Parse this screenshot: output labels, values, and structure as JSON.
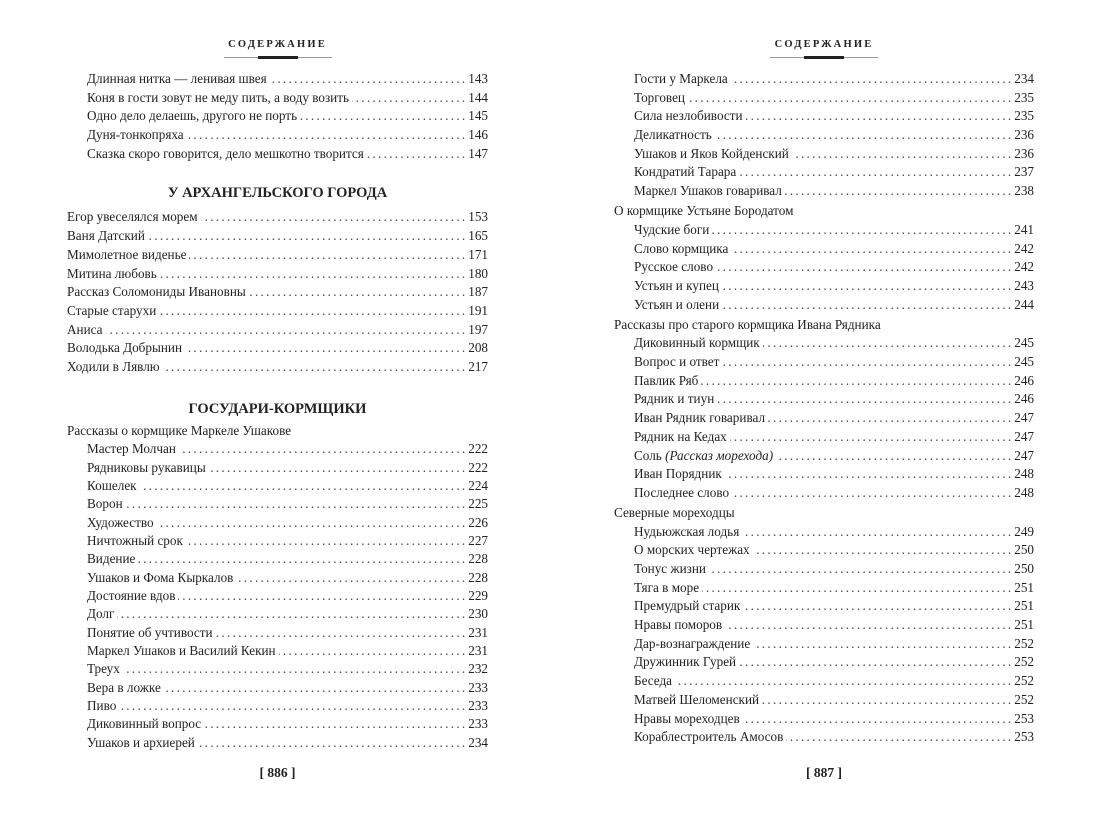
{
  "left_page": {
    "header": "СОДЕРЖАНИЕ",
    "page_number": "[ 886 ]",
    "blocks": [
      {
        "type": "entries",
        "indent": true,
        "items": [
          {
            "title": "Длинная нитка — ленивая швея",
            "page": "143"
          },
          {
            "title": "Коня в гости зовут не меду пить, а воду возить",
            "page": "144"
          },
          {
            "title": "Одно дело делаешь, другого не порть",
            "page": "145"
          },
          {
            "title": "Дуня-тонкопряха",
            "page": "146"
          },
          {
            "title": "Сказка скоро говорится, дело мешкотно творится",
            "page": "147"
          }
        ]
      },
      {
        "type": "section",
        "title": "У АРХАНГЕЛЬСКОГО ГОРОДА"
      },
      {
        "type": "entries",
        "indent": false,
        "items": [
          {
            "title": "Егор увеселялся морем",
            "page": "153"
          },
          {
            "title": "Ваня Датский",
            "page": "165"
          },
          {
            "title": "Мимолетное виденье",
            "page": "171"
          },
          {
            "title": "Митина любовь",
            "page": "180"
          },
          {
            "title": "Рассказ Соломониды Ивановны",
            "page": "187"
          },
          {
            "title": "Старые старухи",
            "page": "191"
          },
          {
            "title": "Аниса",
            "page": "197"
          },
          {
            "title": "Володька Добрынин",
            "page": "208"
          },
          {
            "title": "Ходили в Лявлю",
            "page": "217"
          }
        ]
      },
      {
        "type": "section",
        "title": "ГОСУДАРИ-КОРМЩИКИ"
      },
      {
        "type": "subsection",
        "title": "Рассказы о кормщике Маркеле Ушакове"
      },
      {
        "type": "entries",
        "indent": true,
        "tight": true,
        "items": [
          {
            "title": "Мастер Молчан",
            "page": "222"
          },
          {
            "title": "Рядниковы рукавицы",
            "page": "222"
          },
          {
            "title": "Кошелек",
            "page": "224"
          },
          {
            "title": "Ворон",
            "page": "225"
          },
          {
            "title": "Художество",
            "page": "226"
          },
          {
            "title": "Ничтожный срок",
            "page": "227"
          },
          {
            "title": "Видение",
            "page": "228"
          },
          {
            "title": "Ушаков и Фома Кыркалов",
            "page": "228"
          },
          {
            "title": "Достояние вдов",
            "page": "229"
          },
          {
            "title": "Долг",
            "page": "230"
          },
          {
            "title": "Понятие об учтивости",
            "page": "231"
          },
          {
            "title": "Маркел Ушаков и Василий Кекин",
            "page": "231"
          },
          {
            "title": "Треух",
            "page": "232"
          },
          {
            "title": "Вера в ложке",
            "page": "233"
          },
          {
            "title": "Пиво",
            "page": "233"
          },
          {
            "title": "Диковинный вопрос",
            "page": "233"
          },
          {
            "title": "Ушаков и архиерей",
            "page": "234"
          }
        ]
      }
    ]
  },
  "right_page": {
    "header": "СОДЕРЖАНИЕ",
    "page_number": "[ 887 ]",
    "blocks": [
      {
        "type": "entries",
        "indent": true,
        "items": [
          {
            "title": "Гости у Маркела",
            "page": "234"
          },
          {
            "title": "Торговец",
            "page": "235"
          },
          {
            "title": "Сила незлобивости",
            "page": "235"
          },
          {
            "title": "Деликатность",
            "page": "236"
          },
          {
            "title": "Ушаков и Яков Койденский",
            "page": "236"
          },
          {
            "title": "Кондратий Тарара",
            "page": "237"
          },
          {
            "title": "Маркел Ушаков говаривал",
            "page": "238"
          }
        ]
      },
      {
        "type": "subsection",
        "title": "О кормщике Устьяне Бородатом"
      },
      {
        "type": "entries",
        "indent": true,
        "items": [
          {
            "title": "Чудские боги",
            "page": "241"
          },
          {
            "title": "Слово кормщика",
            "page": "242"
          },
          {
            "title": "Русское слово",
            "page": "242"
          },
          {
            "title": "Устьян и купец",
            "page": "243"
          },
          {
            "title": "Устьян и олени",
            "page": "244"
          }
        ]
      },
      {
        "type": "subsection",
        "title": "Рассказы про старого кормщика Ивана Рядника"
      },
      {
        "type": "entries",
        "indent": true,
        "items": [
          {
            "title": "Диковинный кормщик",
            "page": "245"
          },
          {
            "title": "Вопрос и ответ",
            "page": "245"
          },
          {
            "title": "Павлик Ряб",
            "page": "246"
          },
          {
            "title": "Рядник и тиун",
            "page": "246"
          },
          {
            "title": "Иван Рядник говаривал",
            "page": "247"
          },
          {
            "title": "Рядник на Кедах",
            "page": "247"
          },
          {
            "title": "Соль",
            "italic_note": "(Рассказ морехода)",
            "page": "247"
          },
          {
            "title": "Иван Порядник",
            "page": "248"
          },
          {
            "title": "Последнее слово",
            "page": "248"
          }
        ]
      },
      {
        "type": "subsection",
        "title": "Северные мореходцы"
      },
      {
        "type": "entries",
        "indent": true,
        "items": [
          {
            "title": "Нудьюжская лодья",
            "page": "249"
          },
          {
            "title": "О морских чертежах",
            "page": "250"
          },
          {
            "title": "Тонус жизни",
            "page": "250"
          },
          {
            "title": "Тяга в море",
            "page": "251"
          },
          {
            "title": "Премудрый старик",
            "page": "251"
          },
          {
            "title": "Нравы поморов",
            "page": "251"
          },
          {
            "title": "Дар-вознаграждение",
            "page": "252"
          },
          {
            "title": "Дружинник Гурей",
            "page": "252"
          },
          {
            "title": "Беседа",
            "page": "252"
          },
          {
            "title": "Матвей Шеломенский",
            "page": "252"
          },
          {
            "title": "Нравы мореходцев",
            "page": "253"
          },
          {
            "title": "Кораблестроитель Амосов",
            "page": "253"
          }
        ]
      }
    ]
  }
}
